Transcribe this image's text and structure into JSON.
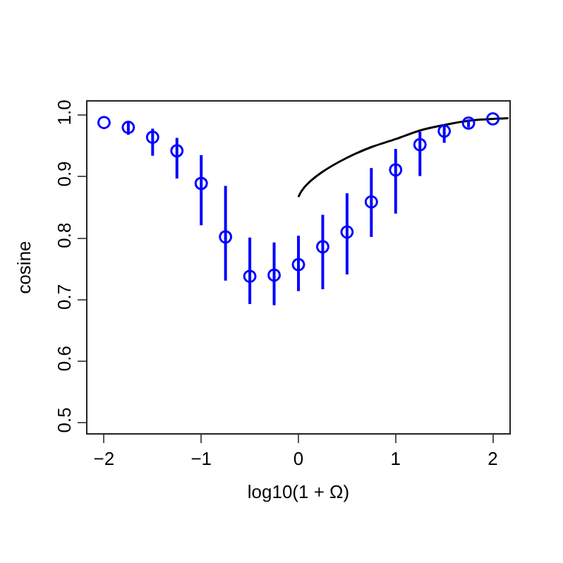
{
  "chart_data": {
    "type": "scatter",
    "xlabel": "log10(1 + Ω)",
    "ylabel": "cosine",
    "xlim": [
      -2.17,
      2.17
    ],
    "ylim": [
      0.483,
      1.022
    ],
    "xticks": [
      {
        "value": -2,
        "label": "−2"
      },
      {
        "value": -1,
        "label": "−1"
      },
      0,
      1,
      2
    ],
    "yticks": [
      {
        "value": 0.5,
        "label": "0.5"
      },
      {
        "value": 0.6,
        "label": "0.6"
      },
      {
        "value": 0.7,
        "label": "0.7"
      },
      {
        "value": 0.8,
        "label": "0.8"
      },
      {
        "value": 0.9,
        "label": "0.9"
      },
      {
        "value": 1.0,
        "label": "1.0"
      }
    ],
    "grid": false,
    "marker": "circle",
    "series": [
      {
        "color": "#0000ff",
        "x": [
          -2,
          -1.75,
          -1.5,
          -1.25,
          -1,
          -0.75,
          -0.5,
          -0.25,
          0,
          0.25,
          0.5,
          0.75,
          1,
          1.25,
          1.5,
          1.75,
          2
        ],
        "values": [
          0.988,
          0.98,
          0.964,
          0.942,
          0.889,
          0.802,
          0.738,
          0.74,
          0.757,
          0.786,
          0.81,
          0.859,
          0.911,
          0.952,
          0.974,
          0.987,
          0.994
        ],
        "errors": [
          null,
          [
            0.968,
            0.99
          ],
          [
            0.934,
            0.978
          ],
          [
            0.897,
            0.963
          ],
          [
            0.821,
            0.935
          ],
          [
            0.731,
            0.885
          ],
          [
            0.693,
            0.801
          ],
          [
            0.691,
            0.793
          ],
          [
            0.714,
            0.804
          ],
          [
            0.717,
            0.838
          ],
          [
            0.741,
            0.873
          ],
          [
            0.802,
            0.914
          ],
          [
            0.84,
            0.945
          ],
          [
            0.901,
            0.973
          ],
          [
            0.955,
            0.983
          ],
          [
            0.98,
            0.993
          ],
          null
        ]
      },
      {
        "type": "line",
        "color": "#000000",
        "marker": "none",
        "x": [
          0,
          0.03,
          0.085,
          0.24,
          0.49,
          0.75,
          1.0,
          1.25,
          1.5,
          1.76,
          2.16
        ],
        "values": [
          0.867,
          0.876,
          0.887,
          0.907,
          0.93,
          0.948,
          0.961,
          0.975,
          0.984,
          0.991,
          0.995
        ]
      }
    ]
  }
}
